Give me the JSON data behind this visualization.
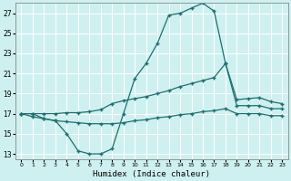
{
  "xlabel": "Humidex (Indice chaleur)",
  "background_color": "#cff0f0",
  "line_color": "#1a7070",
  "grid_color": "#b0e0e0",
  "xlim": [
    -0.5,
    23.5
  ],
  "ylim": [
    12.5,
    28.0
  ],
  "xticks": [
    0,
    1,
    2,
    3,
    4,
    5,
    6,
    7,
    8,
    9,
    10,
    11,
    12,
    13,
    14,
    15,
    16,
    17,
    18,
    19,
    20,
    21,
    22,
    23
  ],
  "yticks": [
    13,
    15,
    17,
    19,
    21,
    23,
    25,
    27
  ],
  "line1_x": [
    0,
    1,
    2,
    3,
    4,
    5,
    6,
    7,
    8,
    9,
    10,
    11,
    12,
    13,
    14,
    15,
    16,
    17,
    18,
    19,
    20,
    21,
    22,
    23
  ],
  "line1_y": [
    17.0,
    17.0,
    16.5,
    16.3,
    15.0,
    13.3,
    13.0,
    13.0,
    13.5,
    17.0,
    20.5,
    22.0,
    24.0,
    26.8,
    27.0,
    27.5,
    28.0,
    27.2,
    22.0,
    17.8,
    17.8,
    17.8,
    17.5,
    17.5
  ],
  "line2_x": [
    0,
    1,
    2,
    3,
    4,
    5,
    6,
    7,
    8,
    9,
    10,
    11,
    12,
    13,
    14,
    15,
    16,
    17,
    18,
    19,
    20,
    21,
    22,
    23
  ],
  "line2_y": [
    17.0,
    17.0,
    17.0,
    17.0,
    17.1,
    17.1,
    17.2,
    17.4,
    18.0,
    18.3,
    18.5,
    18.7,
    19.0,
    19.3,
    19.7,
    20.0,
    20.3,
    20.6,
    22.0,
    18.4,
    18.5,
    18.6,
    18.2,
    18.0
  ],
  "line3_x": [
    0,
    1,
    2,
    3,
    4,
    5,
    6,
    7,
    8,
    9,
    10,
    11,
    12,
    13,
    14,
    15,
    16,
    17,
    18,
    19,
    20,
    21,
    22,
    23
  ],
  "line3_y": [
    17.0,
    16.7,
    16.5,
    16.3,
    16.2,
    16.1,
    16.0,
    16.0,
    16.0,
    16.1,
    16.3,
    16.4,
    16.6,
    16.7,
    16.9,
    17.0,
    17.2,
    17.3,
    17.5,
    17.0,
    17.0,
    17.0,
    16.8,
    16.8
  ]
}
